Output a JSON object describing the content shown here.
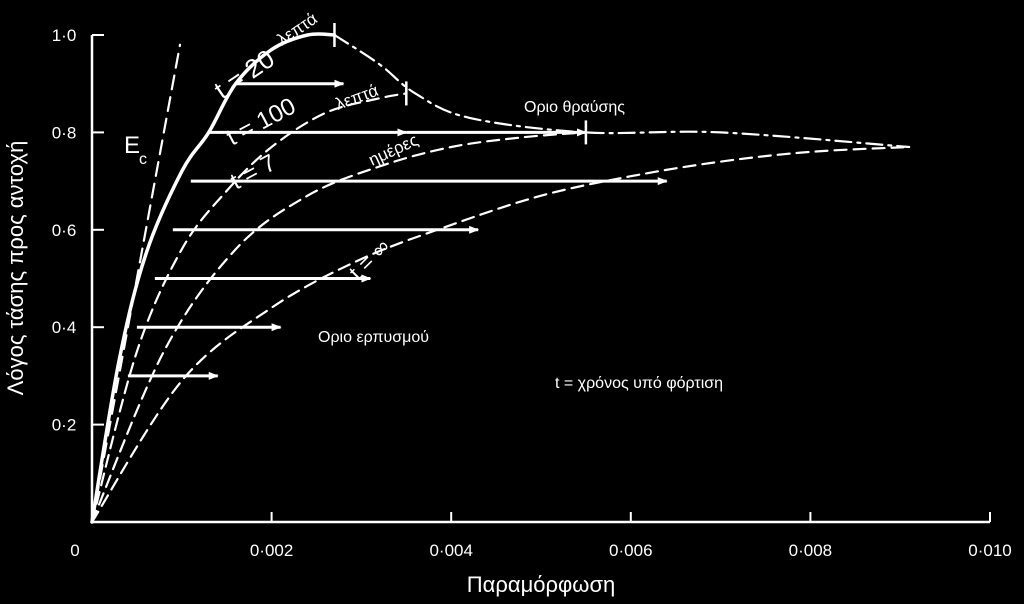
{
  "chart_data": {
    "type": "line",
    "xlabel": "Παραμόρφωση",
    "ylabel": "Λόγος τάσης προς αντοχή",
    "xlim": [
      0,
      0.01
    ],
    "ylim": [
      0,
      1.0
    ],
    "x_ticks": [
      "0",
      "0·002",
      "0·004",
      "0·006",
      "0·008",
      "0·010"
    ],
    "y_ticks": [
      "0·2",
      "0·4",
      "0·6",
      "0·8",
      "1·0"
    ],
    "series": [
      {
        "name": "Ec",
        "x": [
          0,
          0.00098
        ],
        "y": [
          0,
          0.98
        ]
      },
      {
        "name": "t = 20 λεπτά",
        "x": [
          0,
          0.0003,
          0.0006,
          0.001,
          0.0013,
          0.0016,
          0.002,
          0.0024,
          0.0027
        ],
        "y": [
          0,
          0.33,
          0.55,
          0.72,
          0.8,
          0.9,
          0.97,
          1.0,
          1.0
        ]
      },
      {
        "name": "t = 100 λεπτά",
        "x": [
          0,
          0.0005,
          0.001,
          0.0015,
          0.002,
          0.0026,
          0.0032,
          0.0035
        ],
        "y": [
          0,
          0.35,
          0.56,
          0.68,
          0.77,
          0.84,
          0.87,
          0.88
        ]
      },
      {
        "name": "t = 7 ημέρες",
        "x": [
          0,
          0.0008,
          0.0016,
          0.0024,
          0.0032,
          0.004,
          0.0048,
          0.0055
        ],
        "y": [
          0,
          0.35,
          0.56,
          0.67,
          0.73,
          0.77,
          0.79,
          0.8
        ]
      },
      {
        "name": "t = ∞",
        "x": [
          0,
          0.001,
          0.002,
          0.003,
          0.004,
          0.005,
          0.006,
          0.007,
          0.008,
          0.0091
        ],
        "y": [
          0,
          0.29,
          0.44,
          0.54,
          0.61,
          0.67,
          0.71,
          0.74,
          0.76,
          0.77
        ]
      },
      {
        "name": "Όριο θραύσης",
        "x": [
          0.0027,
          0.0032,
          0.0036,
          0.0042,
          0.0055,
          0.007,
          0.0091
        ],
        "y": [
          1.0,
          0.94,
          0.88,
          0.83,
          0.8,
          0.8,
          0.77
        ]
      }
    ],
    "creep_arrows": [
      {
        "y": 0.9,
        "x_start": 0.0016,
        "x_end": 0.0028
      },
      {
        "y": 0.8,
        "x_start": 0.0013,
        "x_end": 0.0035
      },
      {
        "y": 0.8,
        "x_start": 0.0035,
        "x_end": 0.0055
      },
      {
        "y": 0.7,
        "x_start": 0.0011,
        "x_end": 0.0064
      },
      {
        "y": 0.6,
        "x_start": 0.0009,
        "x_end": 0.0043
      },
      {
        "y": 0.5,
        "x_start": 0.0007,
        "x_end": 0.0031
      },
      {
        "y": 0.4,
        "x_start": 0.0005,
        "x_end": 0.0021
      },
      {
        "y": 0.3,
        "x_start": 0.0004,
        "x_end": 0.0014
      }
    ],
    "annotations": {
      "ec": "E",
      "ec_sub": "c",
      "t20": "t = 20",
      "t20_unit": "λεπτά",
      "t100": "t = 100",
      "t100_unit": "λεπτά",
      "t7": "t = 7",
      "t7_unit": "ημέρες",
      "tinf": "t = ∞",
      "failure_limit": "Οριο θραύσης",
      "creep_limit": "Οριο ερπυσμού",
      "legend_t": "t  =  χρόνος υπό φόρτιση"
    },
    "colors": {
      "background": "#000000",
      "foreground": "#ffffff"
    }
  }
}
